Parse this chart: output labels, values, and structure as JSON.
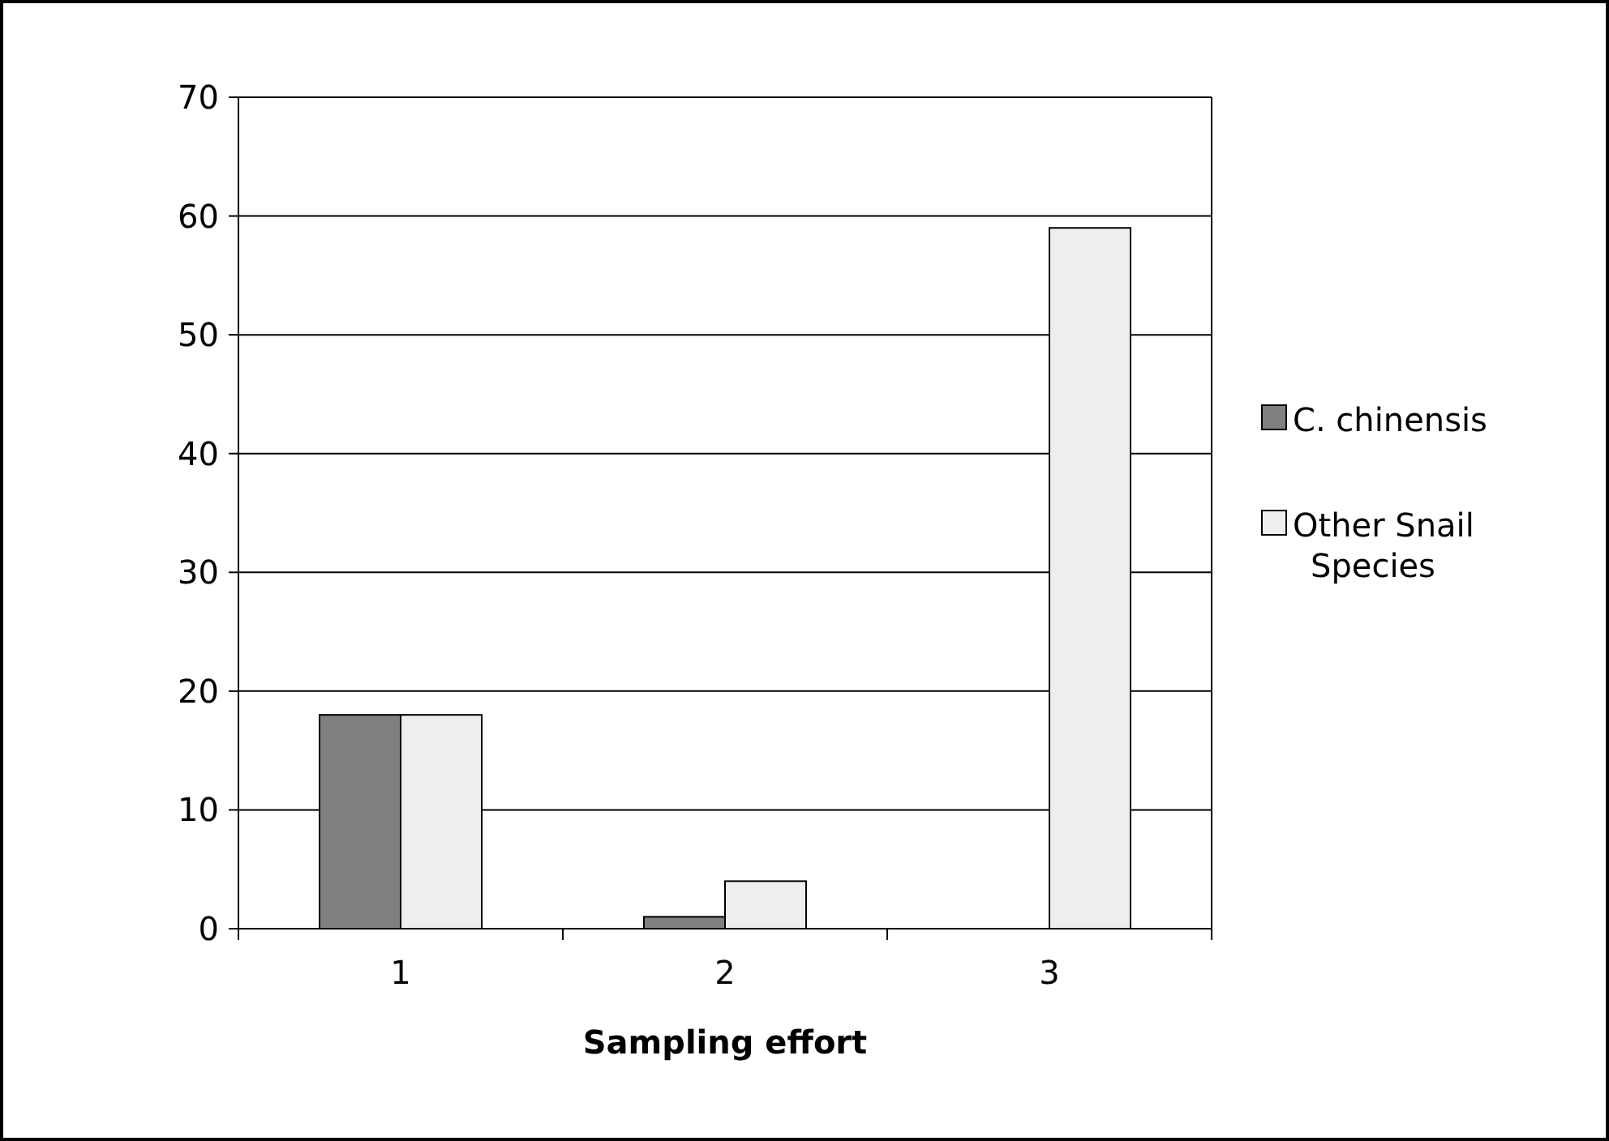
{
  "chart_data": {
    "type": "bar",
    "xlabel": "Sampling effort",
    "categories": [
      "1",
      "2",
      "3"
    ],
    "series": [
      {
        "name": "C. chinensis",
        "color": "#808080",
        "values": [
          18,
          1,
          0
        ]
      },
      {
        "name": "Other Snail Species",
        "color": "#eeeeee",
        "values": [
          18,
          4,
          59
        ]
      }
    ],
    "ylim": [
      0,
      70
    ],
    "yticks": [
      0,
      10,
      20,
      30,
      40,
      50,
      60,
      70
    ],
    "grid": "y",
    "legend": "right"
  }
}
